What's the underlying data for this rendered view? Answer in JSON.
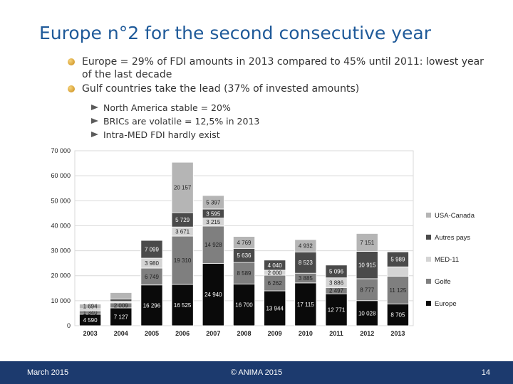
{
  "slide": {
    "title": "Europe n°2 for the second consecutive year",
    "bullets": [
      "Europe = 29% of FDI amounts in 2013 compared to 45% until 2011: lowest year of the last decade",
      "Gulf countries take the lead (37% of invested amounts)"
    ],
    "sub_bullets": [
      "North America stable = 20%",
      "BRICs are volatile = 12,5% in 2013",
      "Intra-MED FDI hardly exist"
    ],
    "footer": {
      "date": "March 2015",
      "copyright": "© ANIMA 2015",
      "page": "14"
    }
  },
  "chart_data": {
    "type": "bar",
    "stacked": true,
    "categories": [
      "2003",
      "2004",
      "2005",
      "2006",
      "2007",
      "2008",
      "2009",
      "2010",
      "2011",
      "2012",
      "2013"
    ],
    "ylim": [
      0,
      70000
    ],
    "yticks": [
      "0",
      "10 000",
      "20 000",
      "30 000",
      "40 000",
      "50 000",
      "60 000",
      "70 000"
    ],
    "grid": true,
    "legend_position": "right",
    "series": [
      {
        "name": "Europe",
        "color": "#0a0a0a",
        "values": [
          4590,
          7127,
          16296,
          16525,
          24940,
          16700,
          13944,
          17115,
          12771,
          10028,
          8705
        ],
        "labels": [
          "4 590",
          "7 127",
          "16 296",
          "16 525",
          "24 940",
          "16 700",
          "13 944",
          "17 115",
          "12 771",
          "10 028",
          "8 705"
        ]
      },
      {
        "name": "Golfe",
        "color": "#7f7f7f",
        "values": [
          1340,
          2009,
          6749,
          19310,
          14928,
          8589,
          6262,
          3885,
          2497,
          8777,
          11125
        ],
        "labels": [
          "1 340",
          "2 009",
          "6 749",
          "19 310",
          "14 928",
          "8 589",
          "6 262",
          "3 885",
          "2 497",
          "8 777",
          "11 125"
        ]
      },
      {
        "name": "MED-11",
        "color": "#d4d4d4",
        "values": [
          600,
          600,
          3980,
          3671,
          3215,
          0,
          2000,
          0,
          3886,
          0,
          3718
        ],
        "labels": [
          "",
          "",
          "3 980",
          "3 671",
          "3 215",
          "",
          "2 000",
          "",
          "3 886",
          "",
          ""
        ]
      },
      {
        "name": "Autres pays",
        "color": "#4a4a4a",
        "values": [
          400,
          900,
          7099,
          5729,
          3595,
          5636,
          4040,
          8523,
          5096,
          10915,
          5989
        ],
        "labels": [
          "",
          "",
          "7 099",
          "5 729",
          "3 595",
          "5 636",
          "4 040",
          "8 523",
          "5 096",
          "10 915",
          "5 989"
        ]
      },
      {
        "name": "USA-Canada",
        "color": "#b5b5b5",
        "values": [
          1694,
          2600,
          0,
          20157,
          5397,
          4769,
          0,
          4932,
          0,
          7151,
          0
        ],
        "labels": [
          "1 694",
          "",
          "",
          "20 157",
          "5 397",
          "4 769",
          "",
          "4 932",
          "",
          "7 151",
          ""
        ]
      }
    ]
  }
}
